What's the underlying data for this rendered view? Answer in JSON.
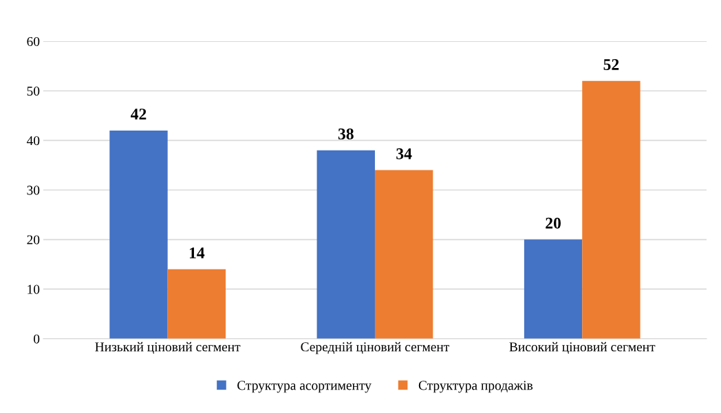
{
  "chart_data": {
    "type": "bar",
    "categories": [
      "Низький ціновий сегмент",
      "Середній ціновий сегмент",
      "Високий ціновий сегмент"
    ],
    "series": [
      {
        "name": "Структура асортименту",
        "color": "#4472c4",
        "values": [
          42,
          38,
          20
        ]
      },
      {
        "name": "Структура продажів",
        "color": "#ed7d31",
        "values": [
          14,
          34,
          52
        ]
      }
    ],
    "ylim": [
      0,
      60
    ],
    "yticks": [
      0,
      10,
      20,
      30,
      40,
      50,
      60
    ],
    "grid": "y",
    "legend": "bottom",
    "data_labels": true
  }
}
